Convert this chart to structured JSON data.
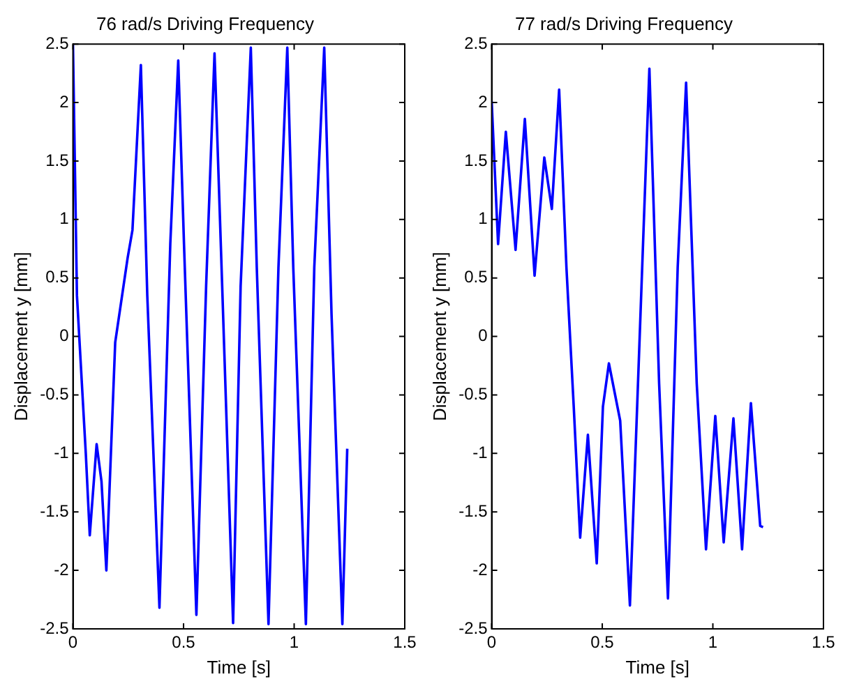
{
  "chart_data": [
    {
      "type": "line",
      "title": "76 rad/s Driving Frequency",
      "xlabel": "Time [s]",
      "ylabel": "Displacement y [mm]",
      "xlim": [
        0,
        1.5
      ],
      "ylim": [
        -2.5,
        2.5
      ],
      "xticks": [
        0,
        0.5,
        1,
        1.5
      ],
      "yticks": [
        -2.5,
        -2,
        -1.5,
        -1,
        -0.5,
        0,
        0.5,
        1,
        1.5,
        2,
        2.5
      ],
      "grid": false,
      "legend": false,
      "marker": "none",
      "line_style": "solid",
      "series": [
        {
          "color": "#0000ff",
          "x": [
            0,
            0.018,
            0.058,
            0.076,
            0.107,
            0.129,
            0.151,
            0.191,
            0.247,
            0.269,
            0.307,
            0.336,
            0.391,
            0.44,
            0.476,
            0.502,
            0.558,
            0.602,
            0.64,
            0.676,
            0.724,
            0.758,
            0.804,
            0.831,
            0.884,
            0.929,
            0.969,
            0.996,
            1.053,
            1.091,
            1.136,
            1.169,
            1.218,
            1.24
          ],
          "values": [
            2.5,
            0.35,
            -1.0,
            -1.7,
            -0.92,
            -1.24,
            -2.0,
            -0.05,
            0.67,
            0.91,
            2.32,
            0.35,
            -2.32,
            0.79,
            2.36,
            0.79,
            -2.38,
            0.43,
            2.42,
            0.35,
            -2.45,
            0.43,
            2.47,
            0.59,
            -2.46,
            0.59,
            2.47,
            0.59,
            -2.46,
            0.59,
            2.47,
            0.19,
            -2.46,
            -0.96
          ]
        }
      ]
    },
    {
      "type": "line",
      "title": "77 rad/s Driving Frequency",
      "xlabel": "Time [s]",
      "ylabel": "Displacement y [mm]",
      "xlim": [
        0,
        1.5
      ],
      "ylim": [
        -2.5,
        2.5
      ],
      "xticks": [
        0,
        0.5,
        1,
        1.5
      ],
      "yticks": [
        -2.5,
        -2,
        -1.5,
        -1,
        -0.5,
        0,
        0.5,
        1,
        1.5,
        2,
        2.5
      ],
      "grid": false,
      "legend": false,
      "marker": "none",
      "line_style": "solid",
      "series": [
        {
          "color": "#0000ff",
          "x": [
            0,
            0.029,
            0.064,
            0.108,
            0.15,
            0.194,
            0.238,
            0.272,
            0.305,
            0.338,
            0.371,
            0.4,
            0.435,
            0.475,
            0.503,
            0.53,
            0.581,
            0.625,
            0.669,
            0.713,
            0.757,
            0.797,
            0.841,
            0.879,
            0.927,
            0.969,
            1.011,
            1.049,
            1.093,
            1.132,
            1.172,
            1.214,
            1.227
          ],
          "values": [
            2.01,
            0.79,
            1.75,
            0.74,
            1.86,
            0.52,
            1.53,
            1.09,
            2.11,
            0.59,
            -0.6,
            -1.72,
            -0.84,
            -1.94,
            -0.6,
            -0.23,
            -0.72,
            -2.3,
            -0.01,
            2.29,
            -0.4,
            -2.24,
            0.59,
            2.17,
            -0.4,
            -1.82,
            -0.68,
            -1.76,
            -0.7,
            -1.82,
            -0.57,
            -1.62,
            -1.63
          ]
        }
      ]
    }
  ]
}
